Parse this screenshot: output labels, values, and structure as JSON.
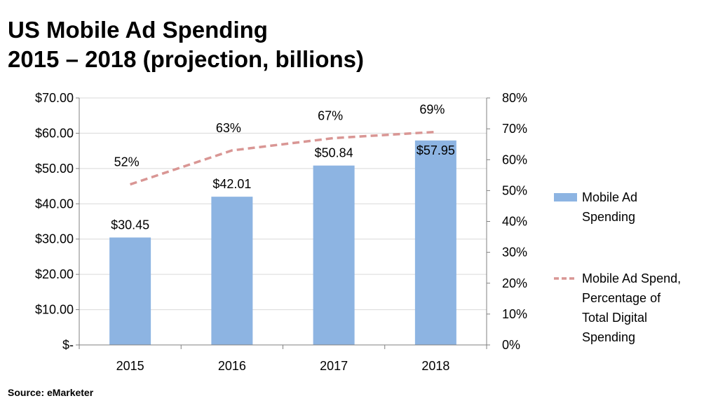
{
  "title_line1": "US Mobile Ad Spending",
  "title_line2": "2015 – 2018 (projection, billions)",
  "source": "Source: eMarketer",
  "chart_data": {
    "type": "bar",
    "categories": [
      "2015",
      "2016",
      "2017",
      "2018"
    ],
    "series": [
      {
        "name": "Mobile Ad Spending",
        "type": "bar",
        "axis": "left",
        "values": [
          30.45,
          42.01,
          50.84,
          57.95
        ],
        "labels": [
          "$30.45",
          "$42.01",
          "$50.84",
          "$57.95"
        ],
        "color": "#8DB4E2"
      },
      {
        "name": "Mobile Ad Spend, Percentage of Total Digital Spending",
        "legend_lines": [
          "Mobile Ad Spend,",
          "Percentage of",
          "Total Digital",
          "Spending"
        ],
        "type": "line",
        "style": "dashed",
        "axis": "right",
        "values": [
          52,
          63,
          67,
          69
        ],
        "labels": [
          "52%",
          "63%",
          "67%",
          "69%"
        ],
        "color": "#D99694"
      }
    ],
    "y_left": {
      "range": [
        0,
        70
      ],
      "ticks": [
        0,
        10,
        20,
        30,
        40,
        50,
        60,
        70
      ],
      "tick_labels": [
        "$-",
        "$10.00",
        "$20.00",
        "$30.00",
        "$40.00",
        "$50.00",
        "$60.00",
        "$70.00"
      ]
    },
    "y_right": {
      "range": [
        0,
        80
      ],
      "ticks": [
        0,
        10,
        20,
        30,
        40,
        50,
        60,
        70,
        80
      ],
      "tick_labels": [
        "0%",
        "10%",
        "20%",
        "30%",
        "40%",
        "50%",
        "60%",
        "70%",
        "80%"
      ]
    },
    "grid": true,
    "legend_position": "right"
  }
}
